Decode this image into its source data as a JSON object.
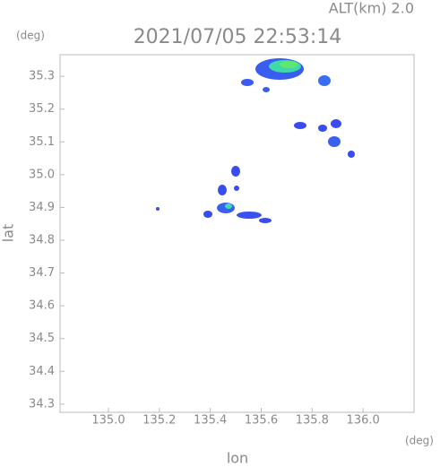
{
  "chart_data": {
    "type": "map",
    "title": "2021/07/05 22:53:14",
    "subtitle": "ALT(km) 2.0",
    "x_label": "lon",
    "y_label": "lat",
    "x_unit": "(deg)",
    "y_unit": "(deg)",
    "xlim": [
      134.81,
      136.2
    ],
    "xticks": [
      {
        "value": 135.0,
        "label": "135.0"
      },
      135.2,
      135.4,
      135.6,
      135.8,
      {
        "value": 136.0,
        "label": "136.0"
      }
    ],
    "ylim": [
      34.275,
      35.366
    ],
    "yticks": [
      34.3,
      34.4,
      34.5,
      34.6,
      34.7,
      34.8,
      34.9,
      {
        "value": 35.0,
        "label": "35.0"
      },
      35.1,
      35.2,
      35.3
    ]
  }
}
